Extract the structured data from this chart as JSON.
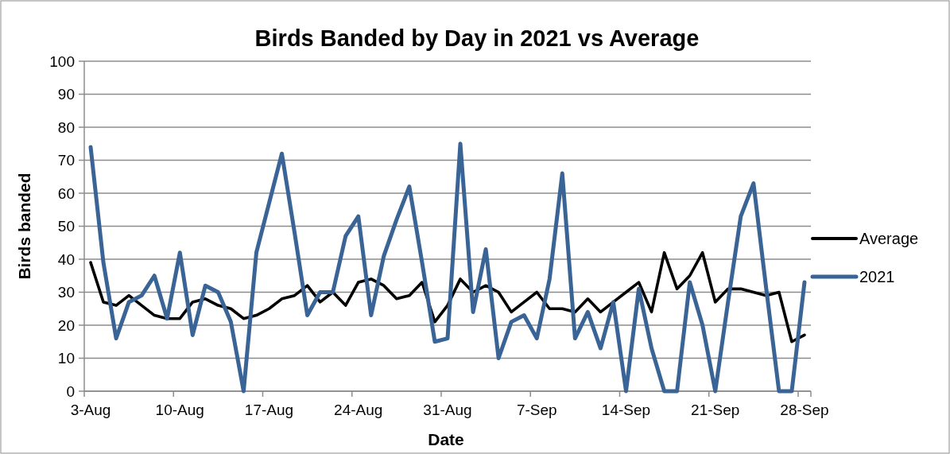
{
  "chart_data": {
    "type": "line",
    "title": "Birds Banded by Day in 2021 vs Average",
    "xlabel": "Date",
    "ylabel": "Birds banded",
    "categories": [
      "3-Aug",
      null,
      null,
      null,
      null,
      null,
      null,
      "10-Aug",
      null,
      null,
      null,
      null,
      null,
      null,
      "17-Aug",
      null,
      null,
      null,
      null,
      null,
      null,
      "24-Aug",
      null,
      null,
      null,
      null,
      null,
      null,
      "31-Aug",
      null,
      null,
      null,
      null,
      null,
      null,
      "7-Sep",
      null,
      null,
      null,
      null,
      null,
      null,
      "14-Sep",
      null,
      null,
      null,
      null,
      null,
      null,
      "21-Sep",
      null,
      null,
      null,
      null,
      null,
      null,
      "28-Sep"
    ],
    "series": [
      {
        "name": "Average",
        "color": "#000000",
        "values": [
          39,
          27,
          26,
          29,
          26,
          23,
          22,
          22,
          27,
          28,
          26,
          25,
          22,
          23,
          25,
          28,
          29,
          32,
          27,
          30,
          26,
          33,
          34,
          32,
          28,
          29,
          33,
          21,
          26,
          34,
          30,
          32,
          30,
          24,
          27,
          30,
          25,
          25,
          24,
          28,
          24,
          27,
          30,
          33,
          24,
          42,
          31,
          35,
          42,
          27,
          31,
          31,
          30,
          29,
          30,
          15,
          17
        ]
      },
      {
        "name": "2021",
        "color": "#3a6496",
        "values": [
          74,
          39,
          16,
          27,
          29,
          35,
          22,
          42,
          17,
          32,
          30,
          21,
          0,
          42,
          57,
          72,
          48,
          23,
          30,
          30,
          47,
          53,
          23,
          41,
          52,
          62,
          39,
          15,
          16,
          75,
          24,
          43,
          10,
          21,
          23,
          16,
          34,
          66,
          16,
          24,
          13,
          27,
          0,
          31,
          13,
          0,
          0,
          33,
          20,
          0,
          27,
          53,
          63,
          31,
          0,
          0,
          33
        ]
      }
    ],
    "ylim": [
      0,
      100
    ],
    "yticks": [
      0,
      10,
      20,
      30,
      40,
      50,
      60,
      70,
      80,
      90,
      100
    ],
    "grid": "y",
    "legend": "right"
  }
}
